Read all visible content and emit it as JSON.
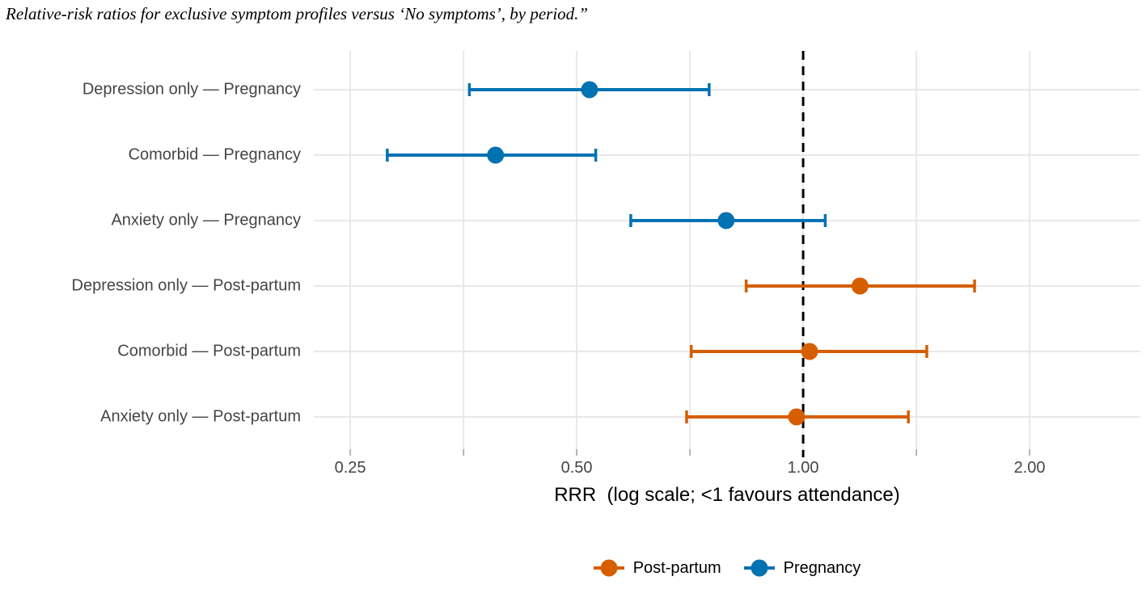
{
  "chart_data": {
    "type": "scatter",
    "subtype": "forest-plot-errorbars",
    "title": "Relative-risk ratios for exclusive symptom profiles versus ‘No symptoms’, by period.”",
    "xlabel": "RRR  (log scale; <1 favours attendance)",
    "x_axis": {
      "scale": "log",
      "domain": [
        0.2236,
        2.807
      ],
      "major_ticks": [
        {
          "value": 0.25,
          "label": "0.25"
        },
        {
          "value": 0.5,
          "label": "0.50"
        },
        {
          "value": 1.0,
          "label": "1.00"
        },
        {
          "value": 2.0,
          "label": "2.00"
        }
      ],
      "minor_ticks": [
        0.3536,
        0.7071,
        1.4142
      ]
    },
    "reference_line": {
      "value": 1.0,
      "style": "dashed",
      "color": "#000000"
    },
    "categories": [
      "Depression only — Pregnancy",
      "Comorbid — Pregnancy",
      "Anxiety only — Pregnancy",
      "Depression only — Post-partum",
      "Comorbid — Post-partum",
      "Anxiety only — Post-partum"
    ],
    "points": [
      {
        "label": "Depression only — Pregnancy",
        "group": "Pregnancy",
        "estimate": 0.52,
        "ci_low": 0.36,
        "ci_high": 0.75
      },
      {
        "label": "Comorbid — Pregnancy",
        "group": "Pregnancy",
        "estimate": 0.39,
        "ci_low": 0.28,
        "ci_high": 0.53
      },
      {
        "label": "Anxiety only — Pregnancy",
        "group": "Pregnancy",
        "estimate": 0.79,
        "ci_low": 0.59,
        "ci_high": 1.07
      },
      {
        "label": "Depression only — Post-partum",
        "group": "Post-partum",
        "estimate": 1.19,
        "ci_low": 0.84,
        "ci_high": 1.69
      },
      {
        "label": "Comorbid — Post-partum",
        "group": "Post-partum",
        "estimate": 1.02,
        "ci_low": 0.71,
        "ci_high": 1.46
      },
      {
        "label": "Anxiety only — Post-partum",
        "group": "Post-partum",
        "estimate": 0.98,
        "ci_low": 0.7,
        "ci_high": 1.38
      }
    ],
    "colors": {
      "Pregnancy": "#0072B2",
      "Post-partum": "#D55E00"
    },
    "legend": [
      {
        "label": "Post-partum",
        "color": "#D55E00"
      },
      {
        "label": "Pregnancy",
        "color": "#0072B2"
      }
    ],
    "legend_position": "bottom-center",
    "grid": true,
    "grid_color": "#E8E8E8",
    "tick_color": "#B5B5B5",
    "label_color": "#454545"
  }
}
